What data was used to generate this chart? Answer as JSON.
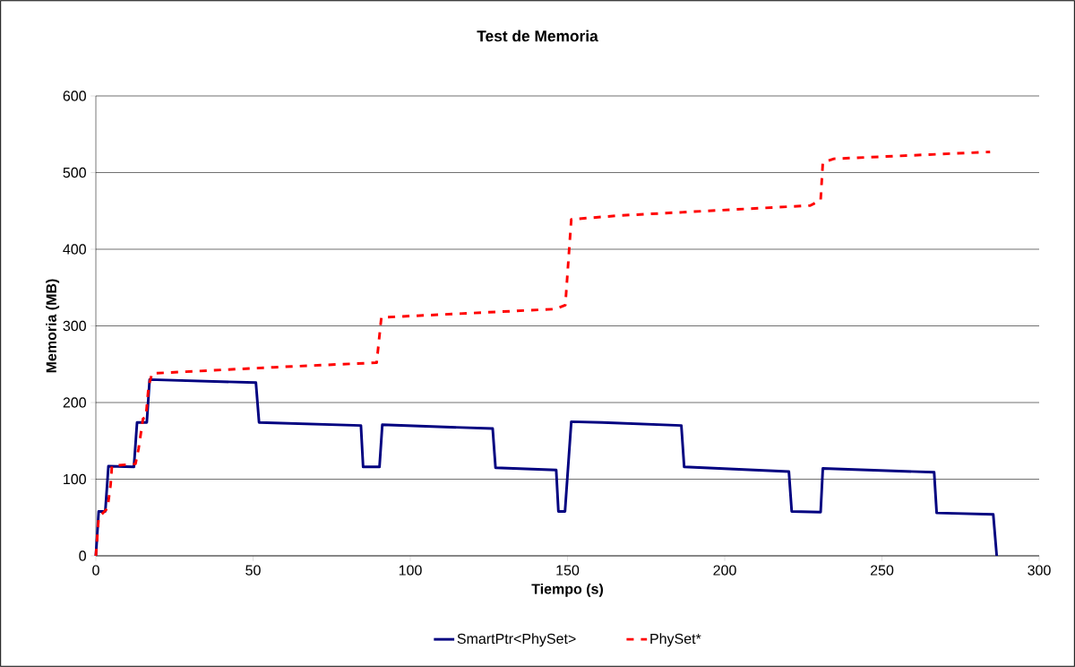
{
  "chart_data": {
    "type": "line",
    "title": "Test de Memoria",
    "xlabel": "Tiempo (s)",
    "ylabel": "Memoria (MB)",
    "xlim": [
      0,
      300
    ],
    "ylim": [
      0,
      600
    ],
    "xticks": [
      0,
      50,
      100,
      150,
      200,
      250,
      300
    ],
    "yticks": [
      0,
      100,
      200,
      300,
      400,
      500,
      600
    ],
    "grid": "y",
    "legend": "bottom",
    "marker": "none",
    "series": [
      {
        "name": "SmartPtr<PhySet>",
        "color": "#000080",
        "line_style": "solid",
        "x": [
          0,
          0.9,
          3.0,
          4.0,
          12.1,
          13.1,
          16.2,
          17.1,
          50.9,
          51.9,
          84.3,
          85.0,
          90.2,
          91.1,
          126.2,
          127.1,
          146.4,
          147.1,
          149.2,
          151.2,
          161,
          186.2,
          187.1,
          220.4,
          221.3,
          230.5,
          231.2,
          266.6,
          267.4,
          285.4,
          286.5
        ],
        "values": [
          0,
          58,
          58,
          117,
          116,
          174,
          174,
          230,
          226,
          174,
          170,
          116,
          116,
          171,
          166,
          115,
          112,
          58,
          58,
          175,
          174,
          170,
          116,
          110,
          58,
          57,
          114,
          109,
          56,
          54,
          0
        ]
      },
      {
        "name": "PhySet*",
        "color": "#ff0000",
        "line_style": "dashed",
        "x": [
          0,
          0.9,
          3.7,
          4.7,
          5.1,
          7.0,
          12.6,
          13.6,
          15.0,
          15.9,
          16.8,
          17.9,
          56.5,
          89.3,
          90.8,
          146.2,
          149.3,
          151.2,
          166.7,
          227.2,
          230.5,
          231.2,
          234.7,
          284.4
        ],
        "values": [
          0,
          50,
          62,
          93,
          117,
          118,
          120,
          140,
          179,
          181,
          222,
          238,
          246,
          252,
          311,
          322,
          327,
          439,
          444,
          457,
          464,
          513,
          518,
          527
        ]
      }
    ]
  }
}
